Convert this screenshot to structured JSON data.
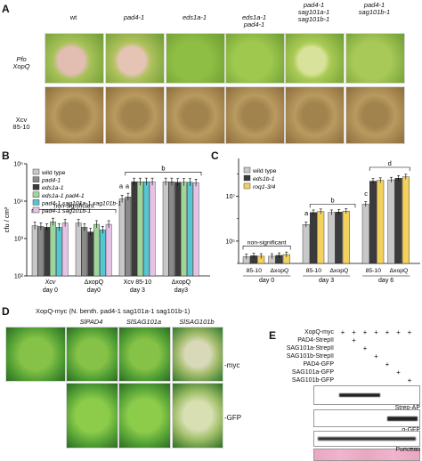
{
  "panel_letters": {
    "a": "A",
    "b": "B",
    "c": "C",
    "d": "D",
    "e": "E"
  },
  "panel_a": {
    "columns": [
      "wt",
      "pad4-1",
      "eds1a-1",
      "eds1a-1\npad4-1",
      "pad4-1\nsag101a-1\nsag101b-1",
      "pad4-1\nsag101b-1"
    ],
    "row1_label": "Pfo\nXopQ",
    "row2_label": "Xcv\n85-10"
  },
  "chart_data": [
    {
      "type": "bar",
      "panel": "B",
      "ylabel": "cfu / cm²",
      "yscale": "log",
      "ylim": [
        100,
        100000
      ],
      "yticks": [
        "10²",
        "10³",
        "10⁴",
        "10⁵"
      ],
      "legend": [
        "wild type",
        "pad4-1",
        "eds1a-1",
        "eds1a-1 pad4-1",
        "pad4-1 sag101a-1 sag101b-1",
        "pad4-1 sag101b-1"
      ],
      "colors": [
        "#c8c8c8",
        "#8a8a8a",
        "#3b3b3b",
        "#9fd49a",
        "#56c6d2",
        "#e6c3e6"
      ],
      "categories": [
        {
          "l1": "Xcv",
          "l2": "day 0",
          "l1_italic": true
        },
        {
          "l1": "ΔxopQ",
          "l2": "day0",
          "l1_italic": false
        },
        {
          "l1": "Xcv 85-10",
          "l2": "day 3",
          "l1_italic": false
        },
        {
          "l1": "ΔxopQ",
          "l2": "day3",
          "l1_italic": false
        }
      ],
      "values": [
        [
          2200,
          2100,
          2000,
          2800,
          2000,
          2600
        ],
        [
          2600,
          2000,
          1500,
          2400,
          1700,
          2400
        ],
        [
          11500,
          13000,
          33000,
          33000,
          33000,
          33000
        ],
        [
          33000,
          33000,
          32000,
          32000,
          32000,
          31000
        ]
      ],
      "annotations": {
        "nonsig": "non-significant",
        "a": "a",
        "b": "b"
      }
    },
    {
      "type": "bar",
      "panel": "C",
      "yscale": "log",
      "ylim": [
        10000,
        500000000
      ],
      "yticks": [
        "10⁵",
        "10⁷"
      ],
      "legend": [
        "wild type",
        "eds1b-1",
        "roq1-3/4"
      ],
      "colors": [
        "#c8c8c8",
        "#3b3b3b",
        "#f2d25c"
      ],
      "x_strain_labels": [
        "85-10",
        "ΔxopQ",
        "85-10",
        "ΔxopQ",
        "85-10",
        "ΔxopQ"
      ],
      "day_labels": [
        "day 0",
        "day 3",
        "day 6"
      ],
      "values": [
        [
          [
            20000,
            22000,
            21000
          ],
          [
            21000,
            23000,
            25000
          ]
        ],
        [
          [
            550000,
            1900000,
            2100000
          ],
          [
            1900000,
            2000000,
            2200000
          ]
        ],
        [
          [
            4500000,
            48000000,
            52000000
          ],
          [
            55000000,
            65000000,
            75000000
          ]
        ]
      ],
      "annotations": {
        "nonsig": "non-significant",
        "a": "a",
        "b": "b",
        "c": "c",
        "d": "d"
      }
    }
  ],
  "panel_d": {
    "title": "XopQ-myc (N. benth. pad4-1 sag101a-1 sag101b-1)",
    "columns": [
      "",
      "SlPAD4",
      "SlSAG101a",
      "SlSAG101b"
    ],
    "rows": [
      "-myc",
      "-GFP"
    ]
  },
  "panel_e": {
    "rows": [
      "XopQ-myc",
      "PAD4-StrepII",
      "SAG101a-StrepII",
      "SAG101b-StrepII",
      "PAD4-GFP",
      "SAG101a-GFP",
      "SAG101b-GFP"
    ],
    "marks": [
      [
        "+",
        "+",
        "+",
        "+",
        "+",
        "+",
        "+"
      ],
      [
        "",
        "+",
        "",
        "",
        "",
        "",
        ""
      ],
      [
        "",
        "",
        "+",
        "",
        "",
        "",
        ""
      ],
      [
        "",
        "",
        "",
        "+",
        "",
        "",
        ""
      ],
      [
        "",
        "",
        "",
        "",
        "+",
        "",
        ""
      ],
      [
        "",
        "",
        "",
        "",
        "",
        "+",
        ""
      ],
      [
        "",
        "",
        "",
        "",
        "",
        "",
        "+"
      ]
    ],
    "blots": [
      "Strep-AP",
      "α-GFP",
      "α-myc",
      "Ponceau"
    ]
  }
}
